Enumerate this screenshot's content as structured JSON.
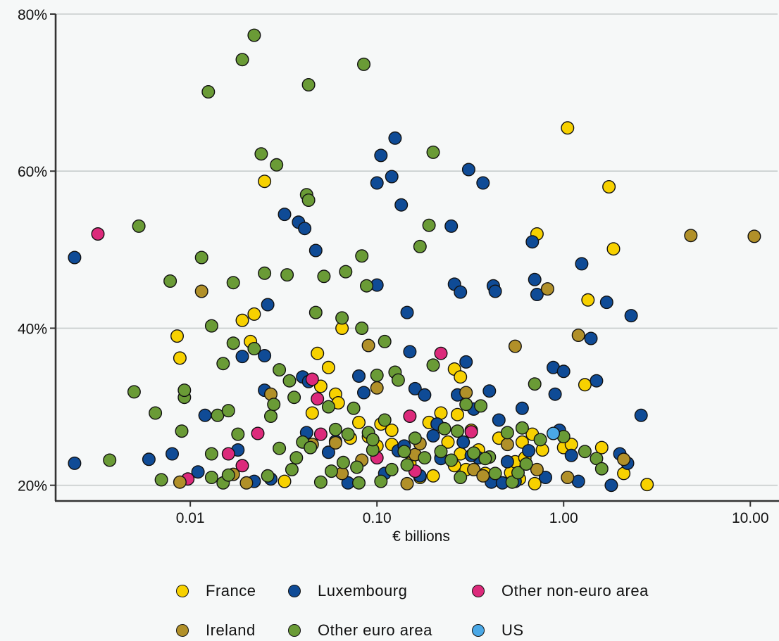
{
  "chart_data": {
    "type": "scatter",
    "title": "",
    "xlabel": "€ billions",
    "ylabel": "",
    "x_scale": "log",
    "xlim": [
      0.0019,
      14
    ],
    "ylim": [
      18,
      80
    ],
    "x_ticks": [
      0.01,
      0.1,
      1,
      10
    ],
    "x_tick_labels": [
      "0.01",
      "0.10",
      "1.00",
      "10.00"
    ],
    "y_ticks": [
      20,
      40,
      60,
      80
    ],
    "y_tick_labels": [
      "20%",
      "40%",
      "60%",
      "80%"
    ],
    "grid": "horizontal",
    "legend_position": "bottom",
    "series": [
      {
        "name": "France",
        "color": "#f7d100",
        "points": [
          [
            0.0085,
            39
          ],
          [
            0.0088,
            36.2
          ],
          [
            0.019,
            41
          ],
          [
            0.021,
            38.3
          ],
          [
            0.022,
            41.8
          ],
          [
            0.025,
            58.7
          ],
          [
            0.045,
            29.2
          ],
          [
            0.048,
            36.8
          ],
          [
            0.05,
            32.6
          ],
          [
            0.055,
            35
          ],
          [
            0.06,
            31.6
          ],
          [
            0.062,
            30.5
          ],
          [
            0.065,
            40
          ],
          [
            0.072,
            26
          ],
          [
            0.08,
            28
          ],
          [
            0.09,
            26.2
          ],
          [
            0.1,
            25
          ],
          [
            0.105,
            27.8
          ],
          [
            0.12,
            25.2
          ],
          [
            0.15,
            22.8
          ],
          [
            0.17,
            21
          ],
          [
            0.19,
            28
          ],
          [
            0.2,
            21.2
          ],
          [
            0.22,
            23.5
          ],
          [
            0.24,
            25.5
          ],
          [
            0.26,
            34.8
          ],
          [
            0.27,
            29
          ],
          [
            0.28,
            33.8
          ],
          [
            0.3,
            22
          ],
          [
            0.32,
            27
          ],
          [
            0.35,
            24.5
          ],
          [
            0.38,
            21.5
          ],
          [
            0.45,
            26
          ],
          [
            0.52,
            21.6
          ],
          [
            0.55,
            23
          ],
          [
            0.58,
            20.8
          ],
          [
            0.6,
            25.5
          ],
          [
            0.62,
            23.5
          ],
          [
            0.68,
            26.5
          ],
          [
            0.7,
            20.2
          ],
          [
            0.72,
            52
          ],
          [
            0.77,
            24.5
          ],
          [
            1.0,
            24.8
          ],
          [
            1.05,
            65.5
          ],
          [
            1.1,
            25.2
          ],
          [
            1.3,
            32.8
          ],
          [
            1.35,
            43.6
          ],
          [
            1.6,
            24.8
          ],
          [
            1.75,
            58
          ],
          [
            1.85,
            50.1
          ],
          [
            2.1,
            21.5
          ],
          [
            2.8,
            20.1
          ],
          [
            0.28,
            24
          ],
          [
            0.22,
            29.2
          ],
          [
            0.12,
            27
          ],
          [
            0.26,
            22.5
          ],
          [
            0.032,
            20.5
          ]
        ]
      },
      {
        "name": "Luxembourg",
        "color": "#0f4b96",
        "points": [
          [
            0.0024,
            49
          ],
          [
            0.0024,
            22.8
          ],
          [
            0.006,
            23.3
          ],
          [
            0.008,
            24
          ],
          [
            0.011,
            21.7
          ],
          [
            0.012,
            28.9
          ],
          [
            0.018,
            24.5
          ],
          [
            0.019,
            36.4
          ],
          [
            0.022,
            20.5
          ],
          [
            0.025,
            32.1
          ],
          [
            0.025,
            36.5
          ],
          [
            0.026,
            43
          ],
          [
            0.027,
            20.8
          ],
          [
            0.032,
            54.5
          ],
          [
            0.038,
            53.5
          ],
          [
            0.041,
            52.7
          ],
          [
            0.04,
            33.8
          ],
          [
            0.042,
            26.7
          ],
          [
            0.043,
            33.2
          ],
          [
            0.047,
            49.9
          ],
          [
            0.055,
            24.2
          ],
          [
            0.06,
            25.6
          ],
          [
            0.07,
            20.3
          ],
          [
            0.08,
            33.9
          ],
          [
            0.085,
            31.8
          ],
          [
            0.1,
            45.5
          ],
          [
            0.1,
            58.5
          ],
          [
            0.105,
            62
          ],
          [
            0.11,
            21.5
          ],
          [
            0.12,
            59.3
          ],
          [
            0.125,
            64.2
          ],
          [
            0.13,
            24.4
          ],
          [
            0.135,
            55.7
          ],
          [
            0.145,
            42
          ],
          [
            0.15,
            37
          ],
          [
            0.16,
            32.3
          ],
          [
            0.17,
            21.2
          ],
          [
            0.18,
            31.5
          ],
          [
            0.2,
            26.3
          ],
          [
            0.21,
            27.8
          ],
          [
            0.22,
            23.4
          ],
          [
            0.25,
            53
          ],
          [
            0.26,
            45.6
          ],
          [
            0.28,
            44.6
          ],
          [
            0.29,
            25.5
          ],
          [
            0.3,
            35.7
          ],
          [
            0.31,
            60.2
          ],
          [
            0.33,
            29.7
          ],
          [
            0.35,
            23.5
          ],
          [
            0.37,
            58.5
          ],
          [
            0.4,
            32
          ],
          [
            0.42,
            45.4
          ],
          [
            0.43,
            44.7
          ],
          [
            0.45,
            28.3
          ],
          [
            0.5,
            23
          ],
          [
            0.55,
            20.5
          ],
          [
            0.6,
            29.8
          ],
          [
            0.65,
            24.4
          ],
          [
            0.68,
            51
          ],
          [
            0.7,
            46.2
          ],
          [
            0.72,
            44.3
          ],
          [
            0.8,
            21
          ],
          [
            0.88,
            35
          ],
          [
            0.9,
            31.6
          ],
          [
            0.95,
            27
          ],
          [
            1.0,
            34.5
          ],
          [
            1.1,
            23.8
          ],
          [
            1.2,
            20.5
          ],
          [
            1.25,
            48.2
          ],
          [
            1.4,
            38.7
          ],
          [
            1.5,
            33.3
          ],
          [
            1.7,
            43.3
          ],
          [
            1.8,
            20
          ],
          [
            2.0,
            24
          ],
          [
            2.2,
            22.8
          ],
          [
            2.3,
            41.6
          ],
          [
            2.6,
            28.9
          ],
          [
            0.14,
            25
          ],
          [
            0.27,
            31.5
          ],
          [
            0.32,
            23.8
          ],
          [
            0.41,
            20.4
          ],
          [
            0.47,
            20.3
          ]
        ]
      },
      {
        "name": "Other non-euro area",
        "color": "#dc2a7b",
        "points": [
          [
            0.0032,
            52
          ],
          [
            0.0097,
            20.8
          ],
          [
            0.016,
            24
          ],
          [
            0.019,
            22.5
          ],
          [
            0.023,
            26.6
          ],
          [
            0.045,
            33.5
          ],
          [
            0.048,
            31
          ],
          [
            0.05,
            26.5
          ],
          [
            0.1,
            23.5
          ],
          [
            0.15,
            28.8
          ],
          [
            0.16,
            21.8
          ],
          [
            0.22,
            36.8
          ],
          [
            0.32,
            26.8
          ]
        ]
      },
      {
        "name": "Ireland",
        "color": "#b19029",
        "points": [
          [
            0.0088,
            20.4
          ],
          [
            0.0115,
            44.7
          ],
          [
            0.02,
            20.3
          ],
          [
            0.027,
            31.6
          ],
          [
            0.045,
            25.2
          ],
          [
            0.06,
            25.4
          ],
          [
            0.065,
            21.5
          ],
          [
            0.09,
            37.8
          ],
          [
            0.1,
            32.4
          ],
          [
            0.145,
            20.2
          ],
          [
            0.16,
            23.9
          ],
          [
            0.17,
            25.3
          ],
          [
            0.3,
            31.8
          ],
          [
            0.33,
            22
          ],
          [
            0.5,
            25.2
          ],
          [
            0.55,
            37.7
          ],
          [
            0.72,
            22
          ],
          [
            0.82,
            45
          ],
          [
            1.05,
            21
          ],
          [
            1.2,
            39.1
          ],
          [
            2.1,
            23.3
          ],
          [
            4.8,
            51.8
          ],
          [
            10.5,
            51.7
          ],
          [
            0.37,
            21.2
          ],
          [
            0.083,
            23.2
          ],
          [
            0.017,
            21.4
          ]
        ]
      },
      {
        "name": "Other euro area",
        "color": "#6a9b36",
        "points": [
          [
            0.0037,
            23.2
          ],
          [
            0.005,
            31.9
          ],
          [
            0.0053,
            53
          ],
          [
            0.0065,
            29.2
          ],
          [
            0.007,
            20.7
          ],
          [
            0.0078,
            46
          ],
          [
            0.009,
            26.9
          ],
          [
            0.0093,
            31.2
          ],
          [
            0.0093,
            32.1
          ],
          [
            0.0115,
            49
          ],
          [
            0.0125,
            70.1
          ],
          [
            0.013,
            24
          ],
          [
            0.013,
            40.3
          ],
          [
            0.013,
            21
          ],
          [
            0.014,
            28.9
          ],
          [
            0.015,
            35.5
          ],
          [
            0.015,
            20.3
          ],
          [
            0.016,
            21.3
          ],
          [
            0.016,
            29.5
          ],
          [
            0.017,
            38.1
          ],
          [
            0.017,
            45.8
          ],
          [
            0.018,
            26.5
          ],
          [
            0.019,
            74.2
          ],
          [
            0.022,
            77.3
          ],
          [
            0.022,
            37.4
          ],
          [
            0.024,
            62.2
          ],
          [
            0.025,
            47
          ],
          [
            0.026,
            21.2
          ],
          [
            0.027,
            28.8
          ],
          [
            0.028,
            30.3
          ],
          [
            0.029,
            60.8
          ],
          [
            0.03,
            34.7
          ],
          [
            0.03,
            24.7
          ],
          [
            0.033,
            46.8
          ],
          [
            0.034,
            33.3
          ],
          [
            0.035,
            22
          ],
          [
            0.036,
            31.2
          ],
          [
            0.037,
            23.5
          ],
          [
            0.04,
            25.5
          ],
          [
            0.042,
            57
          ],
          [
            0.043,
            56.3
          ],
          [
            0.043,
            71
          ],
          [
            0.044,
            24.8
          ],
          [
            0.047,
            42
          ],
          [
            0.05,
            20.4
          ],
          [
            0.052,
            46.6
          ],
          [
            0.055,
            30
          ],
          [
            0.057,
            21.8
          ],
          [
            0.065,
            41.3
          ],
          [
            0.066,
            22.9
          ],
          [
            0.068,
            47.2
          ],
          [
            0.07,
            26.5
          ],
          [
            0.075,
            29.8
          ],
          [
            0.078,
            22.3
          ],
          [
            0.08,
            20.3
          ],
          [
            0.083,
            40
          ],
          [
            0.083,
            49.2
          ],
          [
            0.085,
            73.6
          ],
          [
            0.088,
            45.4
          ],
          [
            0.09,
            26.7
          ],
          [
            0.095,
            24.5
          ],
          [
            0.1,
            34
          ],
          [
            0.105,
            20.5
          ],
          [
            0.11,
            28.3
          ],
          [
            0.11,
            38.3
          ],
          [
            0.12,
            22
          ],
          [
            0.125,
            34.4
          ],
          [
            0.13,
            33.4
          ],
          [
            0.14,
            24.3
          ],
          [
            0.16,
            26
          ],
          [
            0.17,
            50.4
          ],
          [
            0.18,
            23.5
          ],
          [
            0.19,
            53.1
          ],
          [
            0.2,
            35.3
          ],
          [
            0.2,
            62.4
          ],
          [
            0.22,
            24.3
          ],
          [
            0.25,
            23.2
          ],
          [
            0.27,
            26.9
          ],
          [
            0.28,
            21
          ],
          [
            0.3,
            30.3
          ],
          [
            0.33,
            24.1
          ],
          [
            0.36,
            30.1
          ],
          [
            0.4,
            23.6
          ],
          [
            0.43,
            21.5
          ],
          [
            0.5,
            26.7
          ],
          [
            0.53,
            20.4
          ],
          [
            0.57,
            21.6
          ],
          [
            0.6,
            27.3
          ],
          [
            0.63,
            22.7
          ],
          [
            0.7,
            32.9
          ],
          [
            0.75,
            25.8
          ],
          [
            1.0,
            26.2
          ],
          [
            1.3,
            24.3
          ],
          [
            1.5,
            23.4
          ],
          [
            1.6,
            22.1
          ],
          [
            0.095,
            25.8
          ],
          [
            0.145,
            22.6
          ],
          [
            0.23,
            27.2
          ],
          [
            0.38,
            23.4
          ],
          [
            0.06,
            27.1
          ]
        ]
      },
      {
        "name": "US",
        "color": "#4aa8e6",
        "points": [
          [
            0.88,
            26.6
          ]
        ]
      }
    ]
  }
}
